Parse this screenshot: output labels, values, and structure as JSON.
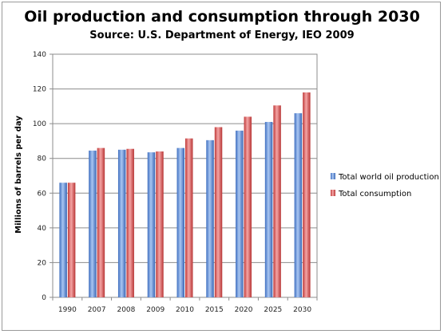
{
  "chart_data": {
    "type": "bar",
    "title": "Oil production and consumption through 2030",
    "subtitle": "Source: U.S. Department of Energy, IEO 2009",
    "xlabel": "",
    "ylabel": "Millions of barrels per day",
    "ylim": [
      0,
      140
    ],
    "yticks": [
      0,
      20,
      40,
      60,
      80,
      100,
      120,
      140
    ],
    "grid": true,
    "legend_position": "right",
    "categories": [
      "1990",
      "2007",
      "2008",
      "2009",
      "2010",
      "2015",
      "2020",
      "2025",
      "2030"
    ],
    "series": [
      {
        "name": "Total world oil production",
        "color": "#5b8fd9",
        "values": [
          66,
          84.5,
          85,
          83.5,
          86,
          90.5,
          96,
          101,
          106
        ]
      },
      {
        "name": "Total consumption",
        "color": "#e05c5c",
        "values": [
          66,
          86,
          85.5,
          84,
          91.5,
          98,
          104,
          110.5,
          118
        ]
      }
    ]
  }
}
